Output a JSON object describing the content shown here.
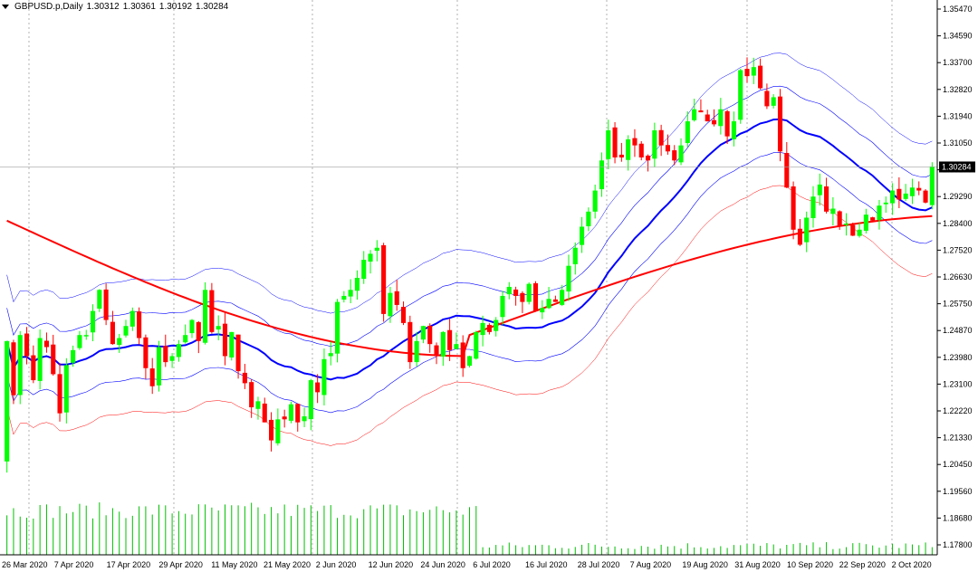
{
  "header": {
    "symbol": "GBPUSD.p,Daily",
    "open": "1.30312",
    "high": "1.30361",
    "low": "1.30192",
    "close": "1.30284"
  },
  "price_label": "1.30284",
  "colors": {
    "bull": "#00ff00",
    "bear": "#ff0000",
    "ma_fast": "#0000ff",
    "ma_slow": "#ff0000",
    "env_blue": "#0000ff",
    "env_red": "#ff0000",
    "volume": "#00c000",
    "grid": "#808080"
  },
  "chart_data": {
    "type": "candlestick",
    "y_ticks": [
      "1.35470",
      "1.34590",
      "1.33700",
      "1.32820",
      "1.31940",
      "1.31050",
      "1.30170",
      "1.29290",
      "1.28400",
      "1.27520",
      "1.26630",
      "1.25750",
      "1.24870",
      "1.23980",
      "1.23100",
      "1.22220",
      "1.21330",
      "1.20450",
      "1.19560",
      "1.18680",
      "1.17800"
    ],
    "x_labels": [
      "26 Mar 2020",
      "7 Apr 2020",
      "17 Apr 2020",
      "29 Apr 2020",
      "11 May 2020",
      "21 May 2020",
      "2 Jun 2020",
      "12 Jun 2020",
      "24 Jun 2020",
      "6 Jul 2020",
      "16 Jul 2020",
      "28 Jul 2020",
      "7 Aug 2020",
      "19 Aug 2020",
      "31 Aug 2020",
      "10 Sep 2020",
      "22 Sep 2020",
      "2 Oct 2020"
    ],
    "ylim": [
      1.174,
      1.3583
    ],
    "closes": [
      1.245,
      1.227,
      1.247,
      1.24,
      1.232,
      1.246,
      1.243,
      1.234,
      1.221,
      1.237,
      1.242,
      1.247,
      1.247,
      1.255,
      1.262,
      1.252,
      1.244,
      1.246,
      1.25,
      1.255,
      1.246,
      1.236,
      1.23,
      1.243,
      1.238,
      1.24,
      1.244,
      1.247,
      1.252,
      1.245,
      1.262,
      1.248,
      1.25,
      1.24,
      1.248,
      1.235,
      1.231,
      1.223,
      1.225,
      1.218,
      1.212,
      1.219,
      1.219,
      1.224,
      1.218,
      1.22,
      1.232,
      1.228,
      1.239,
      1.241,
      1.258,
      1.26,
      1.262,
      1.266,
      1.272,
      1.274,
      1.276,
      1.254,
      1.261,
      1.257,
      1.251,
      1.238,
      1.245,
      1.25,
      1.244,
      1.24,
      1.248,
      1.242,
      1.244,
      1.236,
      1.24,
      1.248,
      1.251,
      1.248,
      1.252,
      1.26,
      1.263,
      1.26,
      1.258,
      1.264,
      1.255,
      1.256,
      1.259,
      1.258,
      1.262,
      1.27,
      1.276,
      1.283,
      1.288,
      1.295,
      1.305,
      1.315,
      1.306,
      1.306,
      1.312,
      1.31,
      1.306,
      1.305,
      1.315,
      1.31,
      1.308,
      1.305,
      1.31,
      1.318,
      1.322,
      1.321,
      1.318,
      1.317,
      1.322,
      1.313,
      1.318,
      1.335,
      1.333,
      1.336,
      1.329,
      1.323,
      1.326,
      1.308,
      1.296,
      1.282,
      1.277,
      1.286,
      1.293,
      1.297,
      1.288,
      1.289,
      1.283,
      1.284,
      1.28,
      1.282,
      1.287,
      1.285,
      1.29,
      1.291,
      1.295,
      1.292,
      1.294,
      1.296,
      1.295,
      1.291,
      1.303
    ],
    "indicators": [
      "MA fast",
      "MA slow",
      "Envelopes",
      "Volume"
    ]
  }
}
